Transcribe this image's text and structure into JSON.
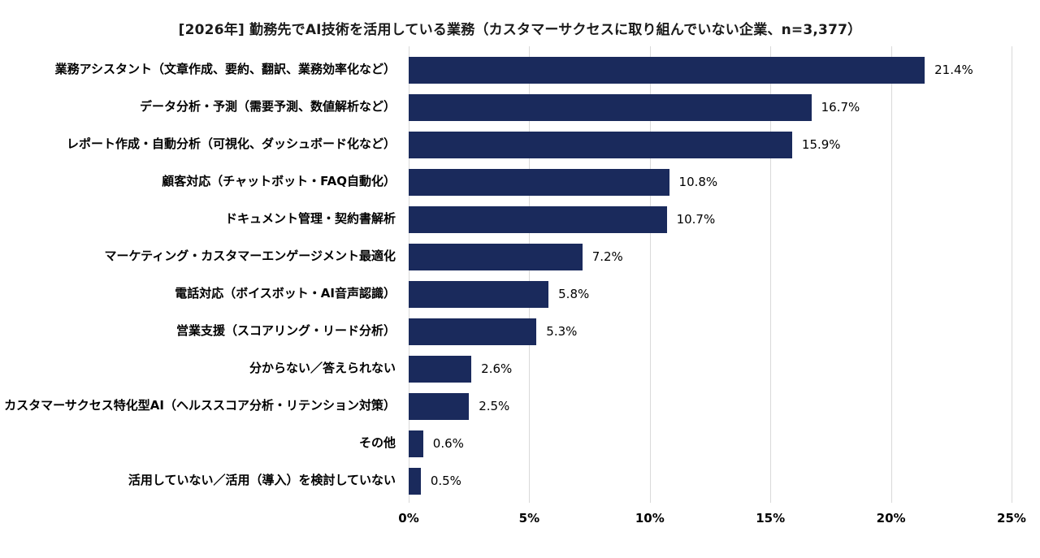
{
  "title": "[2026年] 勤務先でAI技術を活用している業務（カスタマーサクセスに取り組んでいない企業、n=3,377）",
  "chart_data": {
    "type": "bar",
    "orientation": "horizontal",
    "title": "[2026年] 勤務先でAI技術を活用している業務（カスタマーサクセスに取り組んでいない企業、n=3,377）",
    "categories": [
      "業務アシスタント（文章作成、要約、翻訳、業務効率化など）",
      "データ分析・予測（需要予測、数値解析など）",
      "レポート作成・自動分析（可視化、ダッシュボード化など）",
      "顧客対応（チャットボット・FAQ自動化）",
      "ドキュメント管理・契約書解析",
      "マーケティング・カスタマーエンゲージメント最適化",
      "電話対応（ボイスボット・AI音声認識）",
      "営業支援（スコアリング・リード分析）",
      "分からない／答えられない",
      "カスタマーサクセス特化型AI（ヘルススコア分析・リテンション対策）",
      "その他",
      "活用していない／活用（導入）を検討していない"
    ],
    "values": [
      21.4,
      16.7,
      15.9,
      10.8,
      10.7,
      7.2,
      5.8,
      5.3,
      2.6,
      2.5,
      0.6,
      0.5
    ],
    "value_labels": [
      "21.4%",
      "16.7%",
      "15.9%",
      "10.8%",
      "10.7%",
      "7.2%",
      "5.8%",
      "5.3%",
      "2.6%",
      "2.5%",
      "0.6%",
      "0.5%"
    ],
    "xlabel": "",
    "ylabel": "",
    "xlim": [
      0,
      25
    ],
    "x_ticks": [
      "0%",
      "5%",
      "10%",
      "15%",
      "20%",
      "25%"
    ],
    "grid": true,
    "legend": false,
    "bar_color": "#1a2a5c",
    "gridline_color": "#d9d9d9"
  }
}
